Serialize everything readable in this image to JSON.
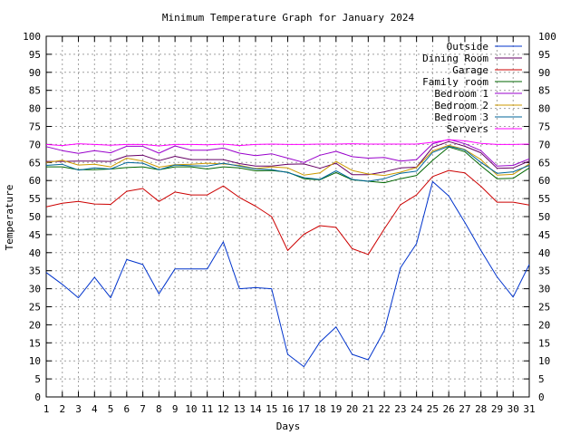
{
  "chart_data": {
    "type": "line",
    "title": "Minimum Temperature Graph for January 2024",
    "xlabel": "Days",
    "ylabel": "Temperature",
    "xlim": [
      1,
      31
    ],
    "ylim": [
      0,
      100
    ],
    "y_ticks": [
      0,
      5,
      10,
      15,
      20,
      25,
      30,
      35,
      40,
      45,
      50,
      55,
      60,
      65,
      70,
      75,
      80,
      85,
      90,
      95,
      100
    ],
    "grid": true,
    "legend_position": "top-right",
    "x": [
      1,
      2,
      3,
      4,
      5,
      6,
      7,
      8,
      9,
      10,
      11,
      12,
      13,
      14,
      15,
      16,
      17,
      18,
      19,
      20,
      21,
      22,
      23,
      24,
      25,
      26,
      27,
      28,
      29,
      30,
      31
    ],
    "series": [
      {
        "name": "Outside",
        "color": "#0033cc",
        "values": [
          34.5,
          31.2,
          27.5,
          33.2,
          27.5,
          38.1,
          36.7,
          28.6,
          35.5,
          35.5,
          35.5,
          43.0,
          30.0,
          30.3,
          30.0,
          11.8,
          8.4,
          15.2,
          19.4,
          11.8,
          10.3,
          18.4,
          35.8,
          42.5,
          59.7,
          55.7,
          48.4,
          40.6,
          33.3,
          27.7,
          36.7
        ]
      },
      {
        "name": "Dining Room",
        "color": "#660066",
        "values": [
          65.3,
          65.3,
          65.4,
          65.4,
          65.3,
          66.8,
          67.0,
          65.5,
          66.7,
          65.8,
          65.8,
          65.8,
          64.7,
          64.0,
          64.0,
          64.5,
          64.6,
          63.4,
          64.8,
          61.6,
          61.6,
          62.4,
          63.5,
          63.7,
          69.2,
          70.8,
          69.5,
          67.7,
          63.4,
          63.5,
          65.4
        ]
      },
      {
        "name": "Garage",
        "color": "#cc0000",
        "values": [
          52.7,
          53.7,
          54.2,
          53.5,
          53.4,
          57.0,
          57.8,
          54.2,
          56.8,
          56.0,
          56.0,
          58.5,
          55.3,
          52.9,
          50.0,
          40.6,
          45.1,
          47.5,
          47.0,
          41.1,
          39.5,
          46.6,
          53.3,
          56.0,
          61.1,
          62.8,
          62.1,
          58.4,
          54.0,
          54.0,
          53.2
        ]
      },
      {
        "name": "Family room",
        "color": "#006600",
        "values": [
          63.8,
          63.8,
          63.0,
          63.0,
          63.2,
          63.6,
          63.8,
          63.0,
          63.8,
          63.8,
          63.2,
          63.8,
          63.5,
          62.7,
          62.8,
          62.3,
          60.5,
          60.2,
          62.2,
          60.2,
          59.8,
          59.4,
          60.5,
          61.4,
          65.6,
          69.3,
          68.0,
          64.1,
          60.5,
          60.6,
          63.5
        ]
      },
      {
        "name": "Bedroom 1",
        "color": "#9900cc",
        "values": [
          69.4,
          68.3,
          67.5,
          68.3,
          67.7,
          69.5,
          69.5,
          67.6,
          69.6,
          68.4,
          68.4,
          69.0,
          67.6,
          66.9,
          67.4,
          66.2,
          65.0,
          67.0,
          68.1,
          66.6,
          66.2,
          66.4,
          65.4,
          65.8,
          70.2,
          71.4,
          70.2,
          68.3,
          64.0,
          64.2,
          66.0
        ]
      },
      {
        "name": "Bedroom 2",
        "color": "#cc9900",
        "values": [
          65.0,
          65.6,
          64.3,
          64.5,
          63.8,
          66.2,
          65.4,
          63.7,
          64.4,
          64.5,
          64.8,
          64.6,
          64.2,
          63.3,
          63.8,
          63.5,
          61.5,
          62.1,
          65.3,
          62.8,
          61.8,
          61.4,
          62.3,
          63.6,
          68.2,
          69.8,
          68.6,
          65.8,
          61.5,
          61.7,
          64.6
        ]
      },
      {
        "name": "Bedroom 3",
        "color": "#006699",
        "values": [
          64.2,
          64.5,
          62.9,
          63.5,
          63.2,
          65.0,
          64.8,
          63.0,
          64.3,
          64.1,
          64.0,
          64.8,
          64.0,
          63.2,
          63.0,
          62.2,
          60.8,
          60.3,
          62.7,
          60.3,
          59.8,
          60.5,
          62.0,
          62.6,
          67.8,
          69.5,
          68.5,
          65.0,
          62.0,
          62.4,
          64.2
        ]
      },
      {
        "name": "Servers",
        "color": "#ff00ff",
        "values": [
          70.0,
          69.7,
          70.2,
          70.0,
          69.8,
          70.0,
          70.0,
          69.6,
          70.0,
          70.0,
          69.9,
          70.1,
          69.7,
          70.0,
          70.1,
          70.0,
          70.0,
          70.1,
          70.1,
          70.2,
          70.1,
          70.1,
          70.1,
          70.1,
          70.6,
          71.3,
          71.0,
          70.3,
          70.0,
          70.0,
          70.1
        ]
      }
    ]
  }
}
